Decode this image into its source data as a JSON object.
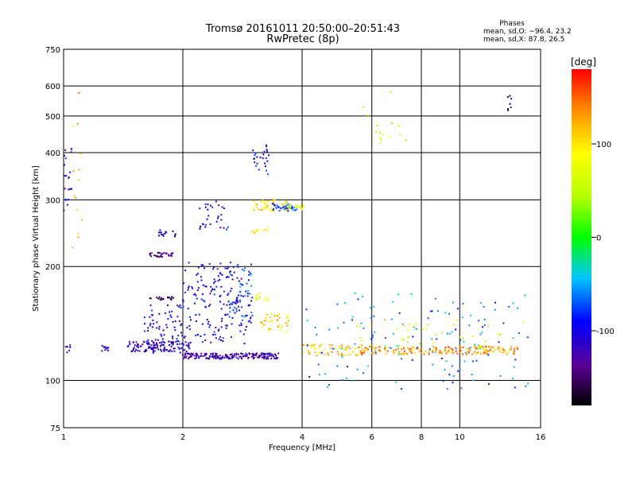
{
  "chart_data": {
    "type": "scatter",
    "title": "Tromsø 20161011 20:50:00–20:51:43",
    "subtitle": "RwPretec (8p)",
    "xlabel": "Frequency [MHz]",
    "ylabel": "Stationary phase Virtual Height [km]",
    "x_scale": "log",
    "y_scale": "log",
    "xlim": [
      1,
      16
    ],
    "ylim": [
      75,
      750
    ],
    "x_ticks": [
      1,
      2,
      4,
      6,
      8,
      10,
      16
    ],
    "x_grid": [
      2,
      4,
      6,
      8,
      10
    ],
    "y_ticks": [
      75,
      100,
      200,
      300,
      400,
      500,
      600,
      750
    ],
    "y_grid": [
      100,
      200,
      300,
      400,
      500,
      600
    ],
    "grid": true,
    "phases": {
      "title": "Phases",
      "line_o": "mean, sd,O: −96.4, 23.2",
      "line_x": "mean, sd,X:  87.8, 26.5"
    },
    "colorbar": {
      "label": "[deg]",
      "range": [
        -180,
        180
      ],
      "ticks": [
        100,
        0,
        -100
      ]
    },
    "clusters": [
      {
        "f": [
          1.0,
          1.05
        ],
        "h": [
          280,
          420
        ],
        "phase": -110,
        "n": 22
      },
      {
        "f": [
          1.05,
          1.12
        ],
        "h": [
          220,
          650
        ],
        "phase": 120,
        "n": 14
      },
      {
        "f": [
          1.0,
          1.05
        ],
        "h": [
          118,
          124
        ],
        "phase": -120,
        "n": 6
      },
      {
        "f": [
          1.25,
          1.3
        ],
        "h": [
          119,
          124
        ],
        "phase": -120,
        "n": 12
      },
      {
        "f": [
          1.45,
          2.1
        ],
        "h": [
          119,
          127
        ],
        "phase": -110,
        "n": 110
      },
      {
        "f": [
          1.6,
          2.0
        ],
        "h": [
          118,
          160
        ],
        "phase": -105,
        "n": 70
      },
      {
        "f": [
          1.65,
          1.9
        ],
        "h": [
          212,
          218
        ],
        "phase": -140,
        "n": 30
      },
      {
        "f": [
          1.65,
          1.9
        ],
        "h": [
          163,
          167
        ],
        "phase": -145,
        "n": 20
      },
      {
        "f": [
          1.72,
          1.92
        ],
        "h": [
          240,
          250
        ],
        "phase": -110,
        "n": 15
      },
      {
        "f": [
          2.0,
          3.5
        ],
        "h": [
          114,
          118
        ],
        "phase": -125,
        "n": 180
      },
      {
        "f": [
          2.0,
          3.0
        ],
        "h": [
          125,
          205
        ],
        "phase": -105,
        "n": 180
      },
      {
        "f": [
          2.2,
          2.6
        ],
        "h": [
          250,
          300
        ],
        "phase": -105,
        "n": 30
      },
      {
        "f": [
          2.6,
          3.0
        ],
        "h": [
          140,
          200
        ],
        "phase": -75,
        "n": 40
      },
      {
        "f": [
          3.0,
          3.7
        ],
        "h": [
          280,
          300
        ],
        "phase": 100,
        "n": 50
      },
      {
        "f": [
          3.0,
          3.3
        ],
        "h": [
          245,
          255
        ],
        "phase": 90,
        "n": 10
      },
      {
        "f": [
          3.0,
          3.3
        ],
        "h": [
          160,
          172
        ],
        "phase": 80,
        "n": 12
      },
      {
        "f": [
          3.1,
          3.7
        ],
        "h": [
          135,
          150
        ],
        "phase": 110,
        "n": 40
      },
      {
        "f": [
          3.35,
          3.9
        ],
        "h": [
          280,
          295
        ],
        "phase": -80,
        "n": 35
      },
      {
        "f": [
          3.7,
          4.1
        ],
        "h": [
          282,
          292
        ],
        "phase": 70,
        "n": 15
      },
      {
        "f": [
          3.0,
          3.3
        ],
        "h": [
          350,
          420
        ],
        "phase": -100,
        "n": 25
      },
      {
        "f": [
          4.0,
          5.8
        ],
        "h": [
          116,
          125
        ],
        "phase": 110,
        "n": 60
      },
      {
        "f": [
          5.5,
          14.0
        ],
        "h": [
          117,
          123
        ],
        "phase": 130,
        "n": 180
      },
      {
        "f": [
          4.0,
          15.0
        ],
        "h": [
          95,
          170
        ],
        "phase": -60,
        "n": 140
      },
      {
        "f": [
          5.0,
          14.5
        ],
        "h": [
          120,
          145
        ],
        "phase": 60,
        "n": 50
      },
      {
        "f": [
          5.5,
          7.5
        ],
        "h": [
          420,
          600
        ],
        "phase": 60,
        "n": 15
      },
      {
        "f": [
          13.2,
          13.5
        ],
        "h": [
          515,
          565
        ],
        "phase": -145,
        "n": 8
      }
    ]
  }
}
